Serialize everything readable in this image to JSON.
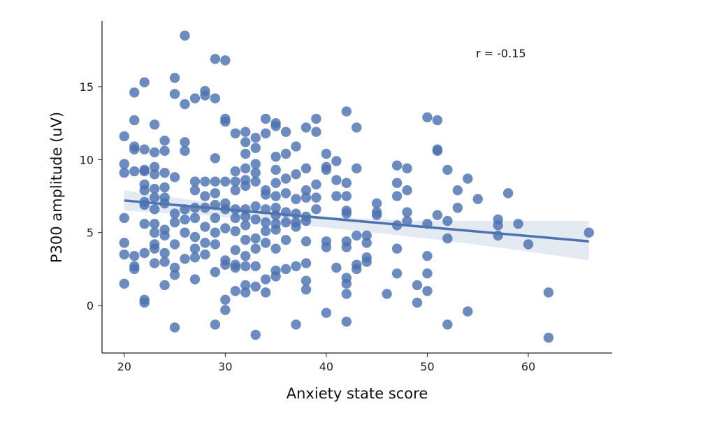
{
  "chart_data": {
    "type": "scatter",
    "title": "",
    "xlabel": "Anxiety state score",
    "ylabel": "P300 amplitude (uV)",
    "xlim": [
      17.8,
      68.3
    ],
    "ylim": [
      -3.25,
      19.5
    ],
    "xticks": [
      20,
      30,
      40,
      50,
      60
    ],
    "yticks": [
      0,
      5,
      10,
      15
    ],
    "grid": false,
    "annotation": "r = -0.15",
    "colors": {
      "points": "#4c72b0",
      "line": "#4c72b0",
      "ci_band": "#dbe3ee"
    },
    "regression": {
      "x": [
        20,
        66
      ],
      "y": [
        7.2,
        4.4
      ]
    },
    "ci_band": {
      "x": [
        20,
        28,
        35,
        42,
        50,
        58,
        66
      ],
      "lower": [
        6.5,
        6.2,
        5.7,
        5.2,
        4.6,
        3.9,
        3.1
      ],
      "upper": [
        7.9,
        7.1,
        6.4,
        6.0,
        5.8,
        5.8,
        5.8
      ]
    },
    "points": [
      [
        20,
        11.6
      ],
      [
        20,
        9.7
      ],
      [
        20,
        9.1
      ],
      [
        20,
        6.0
      ],
      [
        20,
        4.3
      ],
      [
        20,
        3.5
      ],
      [
        20,
        1.5
      ],
      [
        21,
        14.6
      ],
      [
        21,
        12.7
      ],
      [
        21,
        10.9
      ],
      [
        21,
        10.7
      ],
      [
        21,
        9.2
      ],
      [
        21,
        2.7
      ],
      [
        21,
        2.5
      ],
      [
        21,
        3.4
      ],
      [
        22,
        15.3
      ],
      [
        22,
        10.7
      ],
      [
        22,
        9.3
      ],
      [
        22,
        9.2
      ],
      [
        22,
        8.3
      ],
      [
        22,
        7.9
      ],
      [
        22,
        7.1
      ],
      [
        22,
        6.9
      ],
      [
        22,
        5.6
      ],
      [
        22,
        3.6
      ],
      [
        22,
        0.4
      ],
      [
        22,
        0.2
      ],
      [
        23,
        12.4
      ],
      [
        23,
        10.5
      ],
      [
        23,
        9.5
      ],
      [
        23,
        9.0
      ],
      [
        23,
        8.0
      ],
      [
        23,
        7.4
      ],
      [
        23,
        6.6
      ],
      [
        23,
        5.6
      ],
      [
        23,
        5.0
      ],
      [
        23,
        4.2
      ],
      [
        23,
        3.9
      ],
      [
        23,
        2.9
      ],
      [
        24,
        11.3
      ],
      [
        24,
        10.6
      ],
      [
        24,
        9.1
      ],
      [
        24,
        8.1
      ],
      [
        24,
        7.4
      ],
      [
        24,
        7.0
      ],
      [
        24,
        5.2
      ],
      [
        24,
        4.8
      ],
      [
        24,
        3.6
      ],
      [
        24,
        3.0
      ],
      [
        24,
        1.4
      ],
      [
        25,
        15.6
      ],
      [
        25,
        14.5
      ],
      [
        25,
        8.8
      ],
      [
        25,
        6.3
      ],
      [
        25,
        5.7
      ],
      [
        25,
        4.2
      ],
      [
        25,
        2.6
      ],
      [
        25,
        2.1
      ],
      [
        25,
        -1.5
      ],
      [
        26,
        18.5
      ],
      [
        26,
        13.8
      ],
      [
        26,
        11.2
      ],
      [
        26,
        10.6
      ],
      [
        26,
        6.6
      ],
      [
        26,
        5.9
      ],
      [
        26,
        5.0
      ],
      [
        26,
        3.2
      ],
      [
        27,
        14.2
      ],
      [
        27,
        8.5
      ],
      [
        27,
        7.9
      ],
      [
        27,
        6.7
      ],
      [
        27,
        6.0
      ],
      [
        27,
        4.7
      ],
      [
        27,
        3.9
      ],
      [
        27,
        3.3
      ],
      [
        27,
        1.8
      ],
      [
        28,
        14.7
      ],
      [
        28,
        14.4
      ],
      [
        28,
        8.5
      ],
      [
        28,
        7.5
      ],
      [
        28,
        6.7
      ],
      [
        28,
        5.4
      ],
      [
        28,
        4.3
      ],
      [
        28,
        3.5
      ],
      [
        29,
        16.9
      ],
      [
        29,
        14.2
      ],
      [
        29,
        10.1
      ],
      [
        29,
        8.5
      ],
      [
        29,
        7.7
      ],
      [
        29,
        6.9
      ],
      [
        29,
        6.0
      ],
      [
        29,
        5.0
      ],
      [
        29,
        4.2
      ],
      [
        29,
        2.3
      ],
      [
        29,
        -1.3
      ],
      [
        30,
        16.8
      ],
      [
        30,
        12.8
      ],
      [
        30,
        12.6
      ],
      [
        30,
        8.5
      ],
      [
        30,
        7.0
      ],
      [
        30,
        6.6
      ],
      [
        30,
        5.3
      ],
      [
        30,
        3.1
      ],
      [
        30,
        2.8
      ],
      [
        30,
        0.4
      ],
      [
        30,
        -0.3
      ],
      [
        31,
        11.8
      ],
      [
        31,
        9.2
      ],
      [
        31,
        8.5
      ],
      [
        31,
        7.9
      ],
      [
        31,
        6.6
      ],
      [
        31,
        6.0
      ],
      [
        31,
        5.1
      ],
      [
        31,
        3.8
      ],
      [
        31,
        2.8
      ],
      [
        31,
        2.6
      ],
      [
        31,
        1.0
      ],
      [
        32,
        11.9
      ],
      [
        32,
        11.2
      ],
      [
        32,
        10.4
      ],
      [
        32,
        9.4
      ],
      [
        32,
        8.6
      ],
      [
        32,
        8.2
      ],
      [
        32,
        6.6
      ],
      [
        32,
        6.1
      ],
      [
        32,
        5.5
      ],
      [
        32,
        4.5
      ],
      [
        32,
        3.4
      ],
      [
        32,
        2.7
      ],
      [
        32,
        1.4
      ],
      [
        32,
        0.9
      ],
      [
        33,
        11.5
      ],
      [
        33,
        10.8
      ],
      [
        33,
        9.7
      ],
      [
        33,
        9.1
      ],
      [
        33,
        8.5
      ],
      [
        33,
        6.8
      ],
      [
        33,
        5.9
      ],
      [
        33,
        4.6
      ],
      [
        33,
        3.9
      ],
      [
        33,
        2.7
      ],
      [
        33,
        1.3
      ],
      [
        33,
        -2.0
      ],
      [
        34,
        12.8
      ],
      [
        34,
        11.8
      ],
      [
        34,
        7.9
      ],
      [
        34,
        7.6
      ],
      [
        34,
        6.6
      ],
      [
        34,
        5.7
      ],
      [
        34,
        5.1
      ],
      [
        34,
        4.3
      ],
      [
        34,
        1.8
      ],
      [
        34,
        0.9
      ],
      [
        35,
        12.5
      ],
      [
        35,
        12.3
      ],
      [
        35,
        10.2
      ],
      [
        35,
        9.3
      ],
      [
        35,
        8.4
      ],
      [
        35,
        7.5
      ],
      [
        35,
        6.7
      ],
      [
        35,
        6.2
      ],
      [
        35,
        5.6
      ],
      [
        35,
        5.2
      ],
      [
        35,
        3.9
      ],
      [
        35,
        2.4
      ],
      [
        35,
        2.0
      ],
      [
        36,
        11.9
      ],
      [
        36,
        10.4
      ],
      [
        36,
        8.7
      ],
      [
        36,
        7.7
      ],
      [
        36,
        6.4
      ],
      [
        36,
        5.7
      ],
      [
        36,
        4.5
      ],
      [
        36,
        2.5
      ],
      [
        37,
        10.9
      ],
      [
        37,
        9.0
      ],
      [
        37,
        7.3
      ],
      [
        37,
        6.3
      ],
      [
        37,
        5.7
      ],
      [
        37,
        5.4
      ],
      [
        37,
        2.7
      ],
      [
        37,
        -1.3
      ],
      [
        38,
        12.2
      ],
      [
        38,
        9.4
      ],
      [
        38,
        7.9
      ],
      [
        38,
        7.4
      ],
      [
        38,
        6.1
      ],
      [
        38,
        5.8
      ],
      [
        38,
        4.4
      ],
      [
        38,
        2.9
      ],
      [
        38,
        1.7
      ],
      [
        38,
        1.1
      ],
      [
        39,
        12.8
      ],
      [
        39,
        11.9
      ],
      [
        39,
        8.3
      ],
      [
        39,
        7.4
      ],
      [
        39,
        6.6
      ],
      [
        40,
        10.4
      ],
      [
        40,
        9.5
      ],
      [
        40,
        9.3
      ],
      [
        40,
        4.4
      ],
      [
        40,
        4.0
      ],
      [
        40,
        -0.5
      ],
      [
        41,
        9.9
      ],
      [
        41,
        8.6
      ],
      [
        41,
        7.5
      ],
      [
        41,
        2.6
      ],
      [
        42,
        13.3
      ],
      [
        42,
        8.4
      ],
      [
        42,
        7.5
      ],
      [
        42,
        6.5
      ],
      [
        42,
        6.3
      ],
      [
        42,
        4.4
      ],
      [
        42,
        4.0
      ],
      [
        42,
        1.9
      ],
      [
        42,
        1.5
      ],
      [
        42,
        0.8
      ],
      [
        42,
        -1.1
      ],
      [
        43,
        12.2
      ],
      [
        43,
        9.4
      ],
      [
        43,
        4.8
      ],
      [
        43,
        2.8
      ],
      [
        43,
        2.5
      ],
      [
        44,
        4.8
      ],
      [
        44,
        4.3
      ],
      [
        44,
        3.3
      ],
      [
        44,
        3.0
      ],
      [
        45,
        7.0
      ],
      [
        45,
        6.4
      ],
      [
        45,
        6.2
      ],
      [
        46,
        0.8
      ],
      [
        47,
        9.6
      ],
      [
        47,
        8.4
      ],
      [
        47,
        7.5
      ],
      [
        47,
        5.5
      ],
      [
        47,
        3.9
      ],
      [
        47,
        2.2
      ],
      [
        48,
        9.4
      ],
      [
        48,
        7.9
      ],
      [
        48,
        6.4
      ],
      [
        48,
        5.8
      ],
      [
        49,
        1.4
      ],
      [
        49,
        0.2
      ],
      [
        50,
        12.9
      ],
      [
        50,
        5.6
      ],
      [
        50,
        3.4
      ],
      [
        50,
        2.2
      ],
      [
        50,
        1.0
      ],
      [
        51,
        12.7
      ],
      [
        51,
        10.7
      ],
      [
        51,
        10.6
      ],
      [
        51,
        6.2
      ],
      [
        52,
        9.3
      ],
      [
        52,
        5.8
      ],
      [
        52,
        4.6
      ],
      [
        52,
        -1.3
      ],
      [
        53,
        7.9
      ],
      [
        53,
        6.7
      ],
      [
        54,
        8.7
      ],
      [
        54,
        -0.4
      ],
      [
        55,
        7.3
      ],
      [
        57,
        5.9
      ],
      [
        57,
        5.5
      ],
      [
        57,
        4.8
      ],
      [
        58,
        7.7
      ],
      [
        59,
        5.6
      ],
      [
        60,
        4.2
      ],
      [
        62,
        0.9
      ],
      [
        62,
        -2.2
      ],
      [
        66,
        5.0
      ]
    ]
  }
}
